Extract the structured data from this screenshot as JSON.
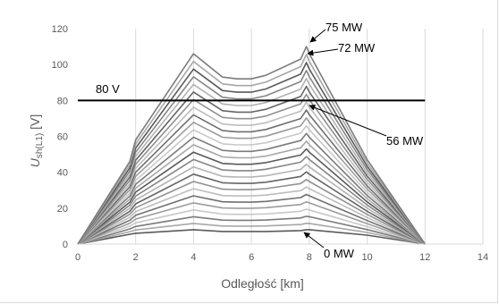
{
  "chart_data": {
    "type": "line",
    "title": "",
    "xlabel": "Odległość [km]",
    "ylabel": {
      "main": "U",
      "sub": "sh(L1)",
      "unit": " [V]"
    },
    "xlim": [
      0,
      14
    ],
    "ylim": [
      0,
      120
    ],
    "xticks": [
      0,
      2,
      4,
      6,
      8,
      10,
      12,
      14
    ],
    "yticks": [
      0,
      20,
      40,
      60,
      80,
      100,
      120
    ],
    "grid": {
      "vertical": true,
      "horizontal": false
    },
    "colors": {
      "grid": "#d9d9d9",
      "threshold": "#000000",
      "text": "#595959",
      "series_dark": "#595959",
      "series_light": "#c8c8c8"
    },
    "series_count": 25,
    "series_summary": {
      "x": [
        0,
        1.8,
        2,
        4,
        5,
        5.5,
        6,
        6.5,
        7.7,
        7.9,
        8,
        10,
        12
      ],
      "top": [
        0,
        46,
        58,
        106,
        93,
        92,
        92,
        94,
        103,
        110,
        106,
        47,
        0
      ],
      "bottom": [
        0,
        5.5,
        6,
        8,
        7,
        7,
        7,
        7,
        7.5,
        8,
        8,
        5,
        0
      ]
    },
    "threshold": {
      "value": 80,
      "label": "80 V",
      "x": [
        0,
        12
      ]
    },
    "annotations": [
      {
        "text": "75 MW"
      },
      {
        "text": "72 MW"
      },
      {
        "text": "56 MW"
      },
      {
        "text": "0 MW"
      }
    ]
  }
}
